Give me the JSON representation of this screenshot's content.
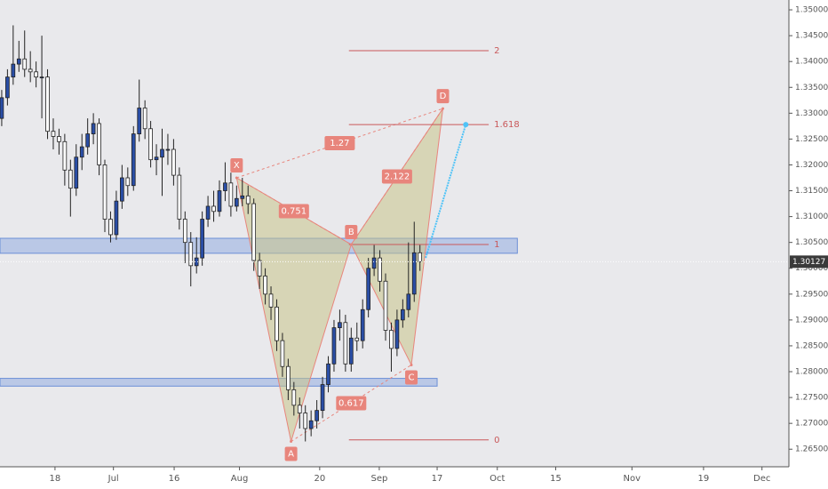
{
  "chart_data": {
    "type": "candlestick",
    "x": [
      0,
      1,
      2,
      3,
      4,
      5,
      6,
      7,
      8,
      9,
      10,
      11,
      12,
      13,
      14,
      15,
      16,
      17,
      18,
      19,
      20,
      21,
      22,
      23,
      24,
      25,
      26,
      27,
      28,
      29,
      30,
      31,
      32,
      33,
      34,
      35,
      36,
      37,
      38,
      39,
      40,
      41,
      42,
      43,
      44,
      45,
      46,
      47,
      48,
      49,
      50,
      51,
      52,
      53,
      54,
      55,
      56,
      57,
      58,
      59,
      60,
      61,
      62,
      63,
      64,
      65,
      66,
      67,
      68,
      69,
      70,
      71,
      72,
      73
    ],
    "open": [
      1.329,
      1.333,
      1.337,
      1.3395,
      1.3405,
      1.3385,
      1.338,
      1.337,
      1.337,
      1.3265,
      1.3255,
      1.3245,
      1.319,
      1.3155,
      1.3215,
      1.3235,
      1.326,
      1.328,
      1.32,
      1.3095,
      1.3065,
      1.313,
      1.3175,
      1.316,
      1.326,
      1.331,
      1.327,
      1.321,
      1.3215,
      1.323,
      1.323,
      1.318,
      1.3095,
      1.305,
      1.3005,
      1.302,
      1.3095,
      1.312,
      1.311,
      1.315,
      1.3165,
      1.312,
      1.3135,
      1.314,
      1.3125,
      1.3015,
      1.2985,
      1.295,
      1.2925,
      1.286,
      1.281,
      1.2765,
      1.2735,
      1.272,
      1.269,
      1.2705,
      1.2725,
      1.2775,
      1.2815,
      1.2885,
      1.2895,
      1.2815,
      1.2865,
      1.286,
      1.292,
      1.3,
      1.302,
      1.2975,
      1.288,
      1.2845,
      1.29,
      1.292,
      1.295,
      1.303
    ],
    "high": [
      1.3345,
      1.3385,
      1.347,
      1.344,
      1.346,
      1.342,
      1.34,
      1.345,
      1.3385,
      1.329,
      1.327,
      1.326,
      1.321,
      1.324,
      1.326,
      1.329,
      1.33,
      1.329,
      1.321,
      1.311,
      1.315,
      1.32,
      1.3195,
      1.3275,
      1.3365,
      1.3325,
      1.3285,
      1.324,
      1.327,
      1.326,
      1.325,
      1.3195,
      1.311,
      1.307,
      1.306,
      1.311,
      1.314,
      1.315,
      1.317,
      1.3205,
      1.3185,
      1.316,
      1.3175,
      1.316,
      1.3135,
      1.303,
      1.3,
      1.2965,
      1.294,
      1.2875,
      1.2825,
      1.278,
      1.275,
      1.2735,
      1.2725,
      1.2745,
      1.279,
      1.283,
      1.29,
      1.292,
      1.291,
      1.2885,
      1.2895,
      1.294,
      1.302,
      1.3045,
      1.3035,
      1.299,
      1.2895,
      1.292,
      1.294,
      1.305,
      1.309,
      1.3045
    ],
    "low": [
      1.3275,
      1.3315,
      1.3355,
      1.338,
      1.337,
      1.336,
      1.335,
      1.329,
      1.325,
      1.323,
      1.322,
      1.316,
      1.31,
      1.314,
      1.319,
      1.322,
      1.324,
      1.318,
      1.307,
      1.305,
      1.3055,
      1.3115,
      1.314,
      1.315,
      1.3245,
      1.325,
      1.3195,
      1.318,
      1.314,
      1.32,
      1.316,
      1.3075,
      1.301,
      1.2965,
      1.299,
      1.3005,
      1.308,
      1.309,
      1.31,
      1.313,
      1.31,
      1.311,
      1.312,
      1.3105,
      1.2995,
      1.296,
      1.293,
      1.29,
      1.284,
      1.279,
      1.2745,
      1.2715,
      1.269,
      1.2665,
      1.2675,
      1.269,
      1.271,
      1.276,
      1.28,
      1.286,
      1.28,
      1.28,
      1.284,
      1.2845,
      1.2905,
      1.2985,
      1.2955,
      1.286,
      1.28,
      1.283,
      1.2885,
      1.2905,
      1.2935,
      1.2995
    ],
    "close": [
      1.333,
      1.337,
      1.3395,
      1.3405,
      1.3385,
      1.338,
      1.337,
      1.337,
      1.3265,
      1.3255,
      1.3245,
      1.319,
      1.3155,
      1.3215,
      1.3235,
      1.326,
      1.328,
      1.32,
      1.3095,
      1.3065,
      1.313,
      1.3175,
      1.316,
      1.326,
      1.331,
      1.327,
      1.321,
      1.3215,
      1.323,
      1.323,
      1.318,
      1.3095,
      1.305,
      1.3005,
      1.302,
      1.3095,
      1.312,
      1.311,
      1.315,
      1.3165,
      1.312,
      1.3135,
      1.314,
      1.3125,
      1.3015,
      1.2985,
      1.295,
      1.2925,
      1.286,
      1.281,
      1.2765,
      1.2735,
      1.272,
      1.269,
      1.2705,
      1.2725,
      1.2775,
      1.2815,
      1.2885,
      1.2895,
      1.2815,
      1.2865,
      1.286,
      1.292,
      1.3,
      1.302,
      1.2975,
      1.288,
      1.2845,
      1.29,
      1.292,
      1.295,
      1.303,
      1.30127
    ],
    "up_color": "#2a4ea6",
    "down_color": "#ffffff",
    "xlim": [
      -0.3,
      137.4
    ],
    "xticks": [
      {
        "value": 9.3,
        "label": "18"
      },
      {
        "value": 19.5,
        "label": "Jul"
      },
      {
        "value": 30.1,
        "label": "16"
      },
      {
        "value": 41.5,
        "label": "Aug"
      },
      {
        "value": 55.5,
        "label": "20"
      },
      {
        "value": 65.9,
        "label": "Sep"
      },
      {
        "value": 76,
        "label": "17"
      },
      {
        "value": 86.5,
        "label": "Oct"
      },
      {
        "value": 96.7,
        "label": "15"
      },
      {
        "value": 110,
        "label": "Nov"
      },
      {
        "value": 122.5,
        "label": "19"
      },
      {
        "value": 132.7,
        "label": "Dec"
      }
    ],
    "ylim": [
      1.2616,
      1.3519
    ],
    "yticks": [
      {
        "value": 1.265,
        "label": "1.26500"
      },
      {
        "value": 1.27,
        "label": "1.27000"
      },
      {
        "value": 1.275,
        "label": "1.27500"
      },
      {
        "value": 1.28,
        "label": "1.28000"
      },
      {
        "value": 1.285,
        "label": "1.28500"
      },
      {
        "value": 1.29,
        "label": "1.29000"
      },
      {
        "value": 1.295,
        "label": "1.29500"
      },
      {
        "value": 1.3,
        "label": "1.30000"
      },
      {
        "value": 1.305,
        "label": "1.30500"
      },
      {
        "value": 1.31,
        "label": "1.31000"
      },
      {
        "value": 1.315,
        "label": "1.31500"
      },
      {
        "value": 1.32,
        "label": "1.32000"
      },
      {
        "value": 1.325,
        "label": "1.32500"
      },
      {
        "value": 1.33,
        "label": "1.33000"
      },
      {
        "value": 1.335,
        "label": "1.33500"
      },
      {
        "value": 1.34,
        "label": "1.34000"
      },
      {
        "value": 1.345,
        "label": "1.34500"
      },
      {
        "value": 1.35,
        "label": "1.35000"
      }
    ],
    "last_price": {
      "value": 1.30127,
      "label": "1.30127"
    },
    "pattern": {
      "points": [
        {
          "label": "X",
          "x": 41,
          "y": 1.3175
        },
        {
          "label": "A",
          "x": 50.5,
          "y": 1.2665
        },
        {
          "label": "B",
          "x": 61,
          "y": 1.3046
        },
        {
          "label": "C",
          "x": 71.5,
          "y": 1.2813
        },
        {
          "label": "D",
          "x": 77,
          "y": 1.3309
        }
      ],
      "ratios": [
        {
          "value": 1.27,
          "legs": [
            "X",
            "D"
          ]
        },
        {
          "value": 0.751,
          "legs": [
            "X",
            "B"
          ]
        },
        {
          "value": 2.122,
          "legs": [
            "B",
            "D"
          ]
        },
        {
          "value": 0.617,
          "legs": [
            "A",
            "C"
          ]
        }
      ],
      "fill": "#c8c48a",
      "line_color": "#e8857c"
    },
    "fib_levels": [
      {
        "level": 2,
        "price": 1.3421
      },
      {
        "level": 1.618,
        "price": 1.3278
      },
      {
        "level": 1,
        "price": 1.3046
      },
      {
        "level": 0,
        "price": 1.2668
      }
    ],
    "fib_xlim": [
      60.6,
      85
    ],
    "zones": [
      {
        "xlim": [
          -0.3,
          90
        ],
        "ylim": [
          1.3029,
          1.3058
        ]
      },
      {
        "xlim": [
          -0.3,
          76
        ],
        "ylim": [
          1.2772,
          1.2787
        ]
      }
    ],
    "projection": {
      "x": [
        74,
        81
      ],
      "y": [
        1.302,
        1.3278
      ],
      "color": "#4fc3f7"
    }
  }
}
